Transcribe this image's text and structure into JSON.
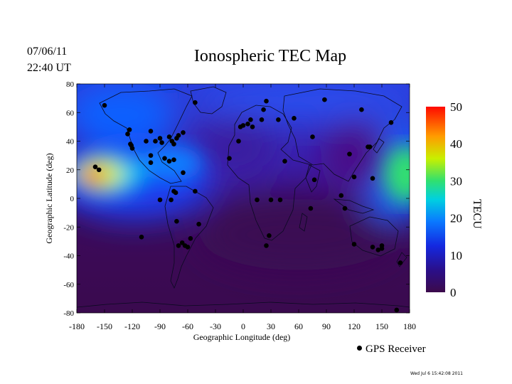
{
  "header": {
    "date": "07/06/11",
    "time": "22:40 UT",
    "title": "Ionospheric TEC Map"
  },
  "axes": {
    "xlabel": "Geographic Longitude (deg)",
    "ylabel": "Geographic Latitude (deg)",
    "xticks": [
      "-180",
      "-150",
      "-120",
      "-90",
      "-60",
      "-30",
      "0",
      "30",
      "60",
      "90",
      "120",
      "150",
      "180"
    ],
    "yticks": [
      "80",
      "60",
      "40",
      "20",
      "0",
      "-20",
      "-40",
      "-60",
      "-80"
    ]
  },
  "colorbar": {
    "label": "TECU",
    "ticks": [
      "50",
      "40",
      "30",
      "20",
      "10",
      "0"
    ],
    "colors": [
      "#3c0a4a",
      "#1a1aa0",
      "#1040ff",
      "#00c8e8",
      "#30e070",
      "#e8f000",
      "#ff9000",
      "#ff1000"
    ]
  },
  "legend": {
    "gps_label": "GPS Receiver"
  },
  "footer": {
    "stamp": "Wed Jul  6 15:42:08 2011"
  },
  "chart_data": {
    "type": "heatmap",
    "title": "Ionospheric TEC Map",
    "xlabel": "Geographic Longitude (deg)",
    "ylabel": "Geographic Latitude (deg)",
    "xlim": [
      -180,
      180
    ],
    "ylim": [
      -80,
      80
    ],
    "colorbar_label": "TECU",
    "colorbar_range": [
      0,
      50
    ],
    "tec_hotspots": [
      {
        "lon": -165,
        "lat": 16,
        "tec": 48
      },
      {
        "lon": 175,
        "lat": 18,
        "tec": 28
      },
      {
        "lon": -120,
        "lat": 10,
        "tec": 20
      },
      {
        "lon": -150,
        "lat": 60,
        "tec": 15
      }
    ],
    "gps_receivers": [
      [
        -150,
        65
      ],
      [
        -125,
        45
      ],
      [
        -123,
        48
      ],
      [
        -122,
        38
      ],
      [
        -120,
        35
      ],
      [
        -121,
        37
      ],
      [
        -105,
        40
      ],
      [
        -100,
        47
      ],
      [
        -95,
        40
      ],
      [
        -90,
        42
      ],
      [
        -88,
        39
      ],
      [
        -80,
        43
      ],
      [
        -77,
        40
      ],
      [
        -75,
        38
      ],
      [
        -72,
        42
      ],
      [
        -70,
        44
      ],
      [
        -65,
        46
      ],
      [
        -100,
        30
      ],
      [
        -100,
        25
      ],
      [
        -85,
        28
      ],
      [
        -80,
        26
      ],
      [
        -75,
        27
      ],
      [
        -65,
        18
      ],
      [
        -90,
        -1
      ],
      [
        -78,
        -1
      ],
      [
        -75,
        5
      ],
      [
        -73,
        4
      ],
      [
        -72,
        -16
      ],
      [
        -70,
        -33
      ],
      [
        -66,
        -31
      ],
      [
        -63,
        -33
      ],
      [
        -60,
        -34
      ],
      [
        -57,
        -28
      ],
      [
        -48,
        -18
      ],
      [
        -52,
        5
      ],
      [
        -110,
        -27
      ],
      [
        -160,
        22
      ],
      [
        -156,
        20
      ],
      [
        -52,
        67
      ],
      [
        -5,
        40
      ],
      [
        -3,
        50
      ],
      [
        0,
        51
      ],
      [
        5,
        52
      ],
      [
        10,
        50
      ],
      [
        8,
        55
      ],
      [
        20,
        55
      ],
      [
        22,
        62
      ],
      [
        25,
        68
      ],
      [
        38,
        55
      ],
      [
        55,
        56
      ],
      [
        88,
        69
      ],
      [
        75,
        43
      ],
      [
        -15,
        28
      ],
      [
        15,
        -1
      ],
      [
        30,
        -1
      ],
      [
        40,
        -1
      ],
      [
        45,
        26
      ],
      [
        28,
        -26
      ],
      [
        25,
        -33
      ],
      [
        77,
        13
      ],
      [
        73,
        -7
      ],
      [
        106,
        2
      ],
      [
        110,
        -7
      ],
      [
        115,
        31
      ],
      [
        120,
        15
      ],
      [
        120,
        -32
      ],
      [
        128,
        62
      ],
      [
        135,
        36
      ],
      [
        137,
        36
      ],
      [
        140,
        14
      ],
      [
        140,
        -34
      ],
      [
        146,
        -36
      ],
      [
        150,
        -35
      ],
      [
        150,
        -33
      ],
      [
        160,
        53
      ],
      [
        170,
        -45
      ],
      [
        166,
        -78
      ]
    ]
  }
}
